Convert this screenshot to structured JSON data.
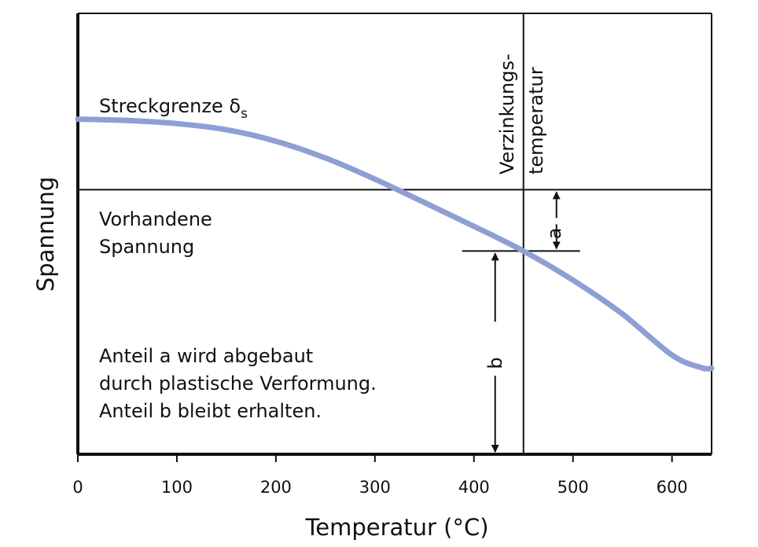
{
  "chart_data": {
    "type": "line",
    "xlabel": "Temperatur (°C)",
    "ylabel": "Spannung",
    "xlim": [
      0,
      640
    ],
    "x_ticks": [
      "0",
      "100",
      "200",
      "300",
      "400",
      "500",
      "600"
    ],
    "y_ticks": [],
    "grid": false,
    "series": [
      {
        "color": "#8f9fd6",
        "x": [
          0,
          50,
          100,
          150,
          200,
          250,
          300,
          350,
          400,
          450,
          500,
          550,
          600,
          630,
          640
        ],
        "y": [
          0.76,
          0.757,
          0.75,
          0.736,
          0.71,
          0.672,
          0.624,
          0.571,
          0.517,
          0.461,
          0.395,
          0.318,
          0.225,
          0.196,
          0.195
        ]
      }
    ],
    "reference_lines": {
      "vorhandene_spannung_y": 0.6,
      "verzinkungstemperatur_x": 450
    },
    "annotations": {
      "streckgrenze": "Streckgrenze δ",
      "streckgrenze_sub": "s",
      "vorhandene_1": "Vorhandene",
      "vorhandene_2": "Spannung",
      "verzinkung_1": "Verzinkungs-",
      "verzinkung_2": "temperatur",
      "label_a": "a",
      "label_b": "b",
      "note_1": "Anteil a wird abgebaut",
      "note_2": "durch plastische Verformung.",
      "note_3": "Anteil b bleibt erhalten."
    }
  }
}
